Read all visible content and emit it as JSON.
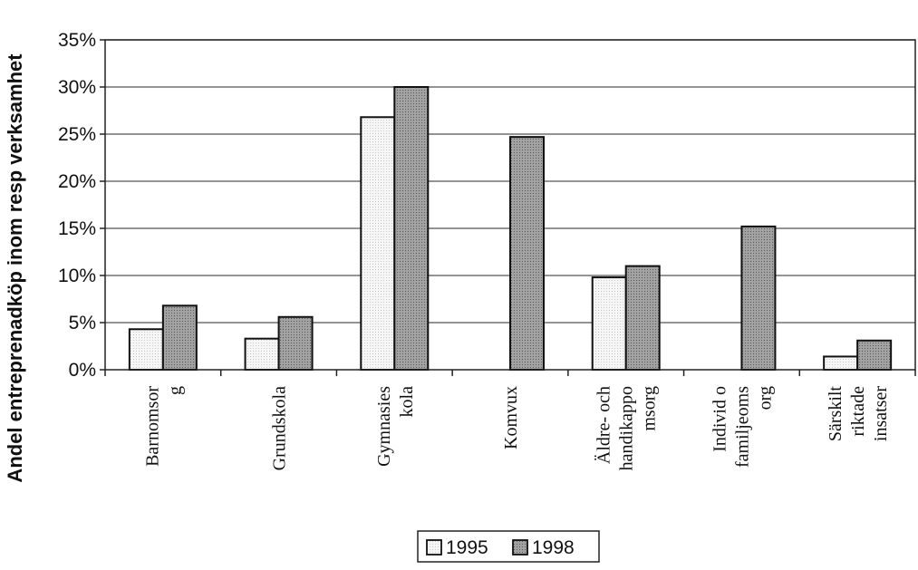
{
  "chart_data": {
    "type": "bar",
    "title": "",
    "xlabel": "",
    "ylabel": "Andel entreprenadköp inom resp verksamhet",
    "ylim": [
      0,
      35
    ],
    "yticks": [
      "0%",
      "5%",
      "10%",
      "15%",
      "20%",
      "25%",
      "30%",
      "35%"
    ],
    "grid": true,
    "legend_position": "bottom",
    "categories": [
      [
        "Barnomsor",
        "g"
      ],
      [
        "Grundskola"
      ],
      [
        "Gymnasies",
        "kola"
      ],
      [
        "Komvux"
      ],
      [
        "Äldre- och",
        "handikappo",
        "msorg"
      ],
      [
        "Individ o",
        "familjeoms",
        "org"
      ],
      [
        "Särskilt",
        "riktade",
        "insatser"
      ]
    ],
    "series": [
      {
        "name": "1995",
        "color": "#f2f2f2",
        "values": [
          4.3,
          3.3,
          26.8,
          null,
          9.8,
          null,
          1.4
        ]
      },
      {
        "name": "1998",
        "color": "#9a9a9a",
        "values": [
          6.8,
          5.6,
          30.0,
          24.7,
          11.0,
          15.2,
          3.1
        ]
      }
    ]
  }
}
